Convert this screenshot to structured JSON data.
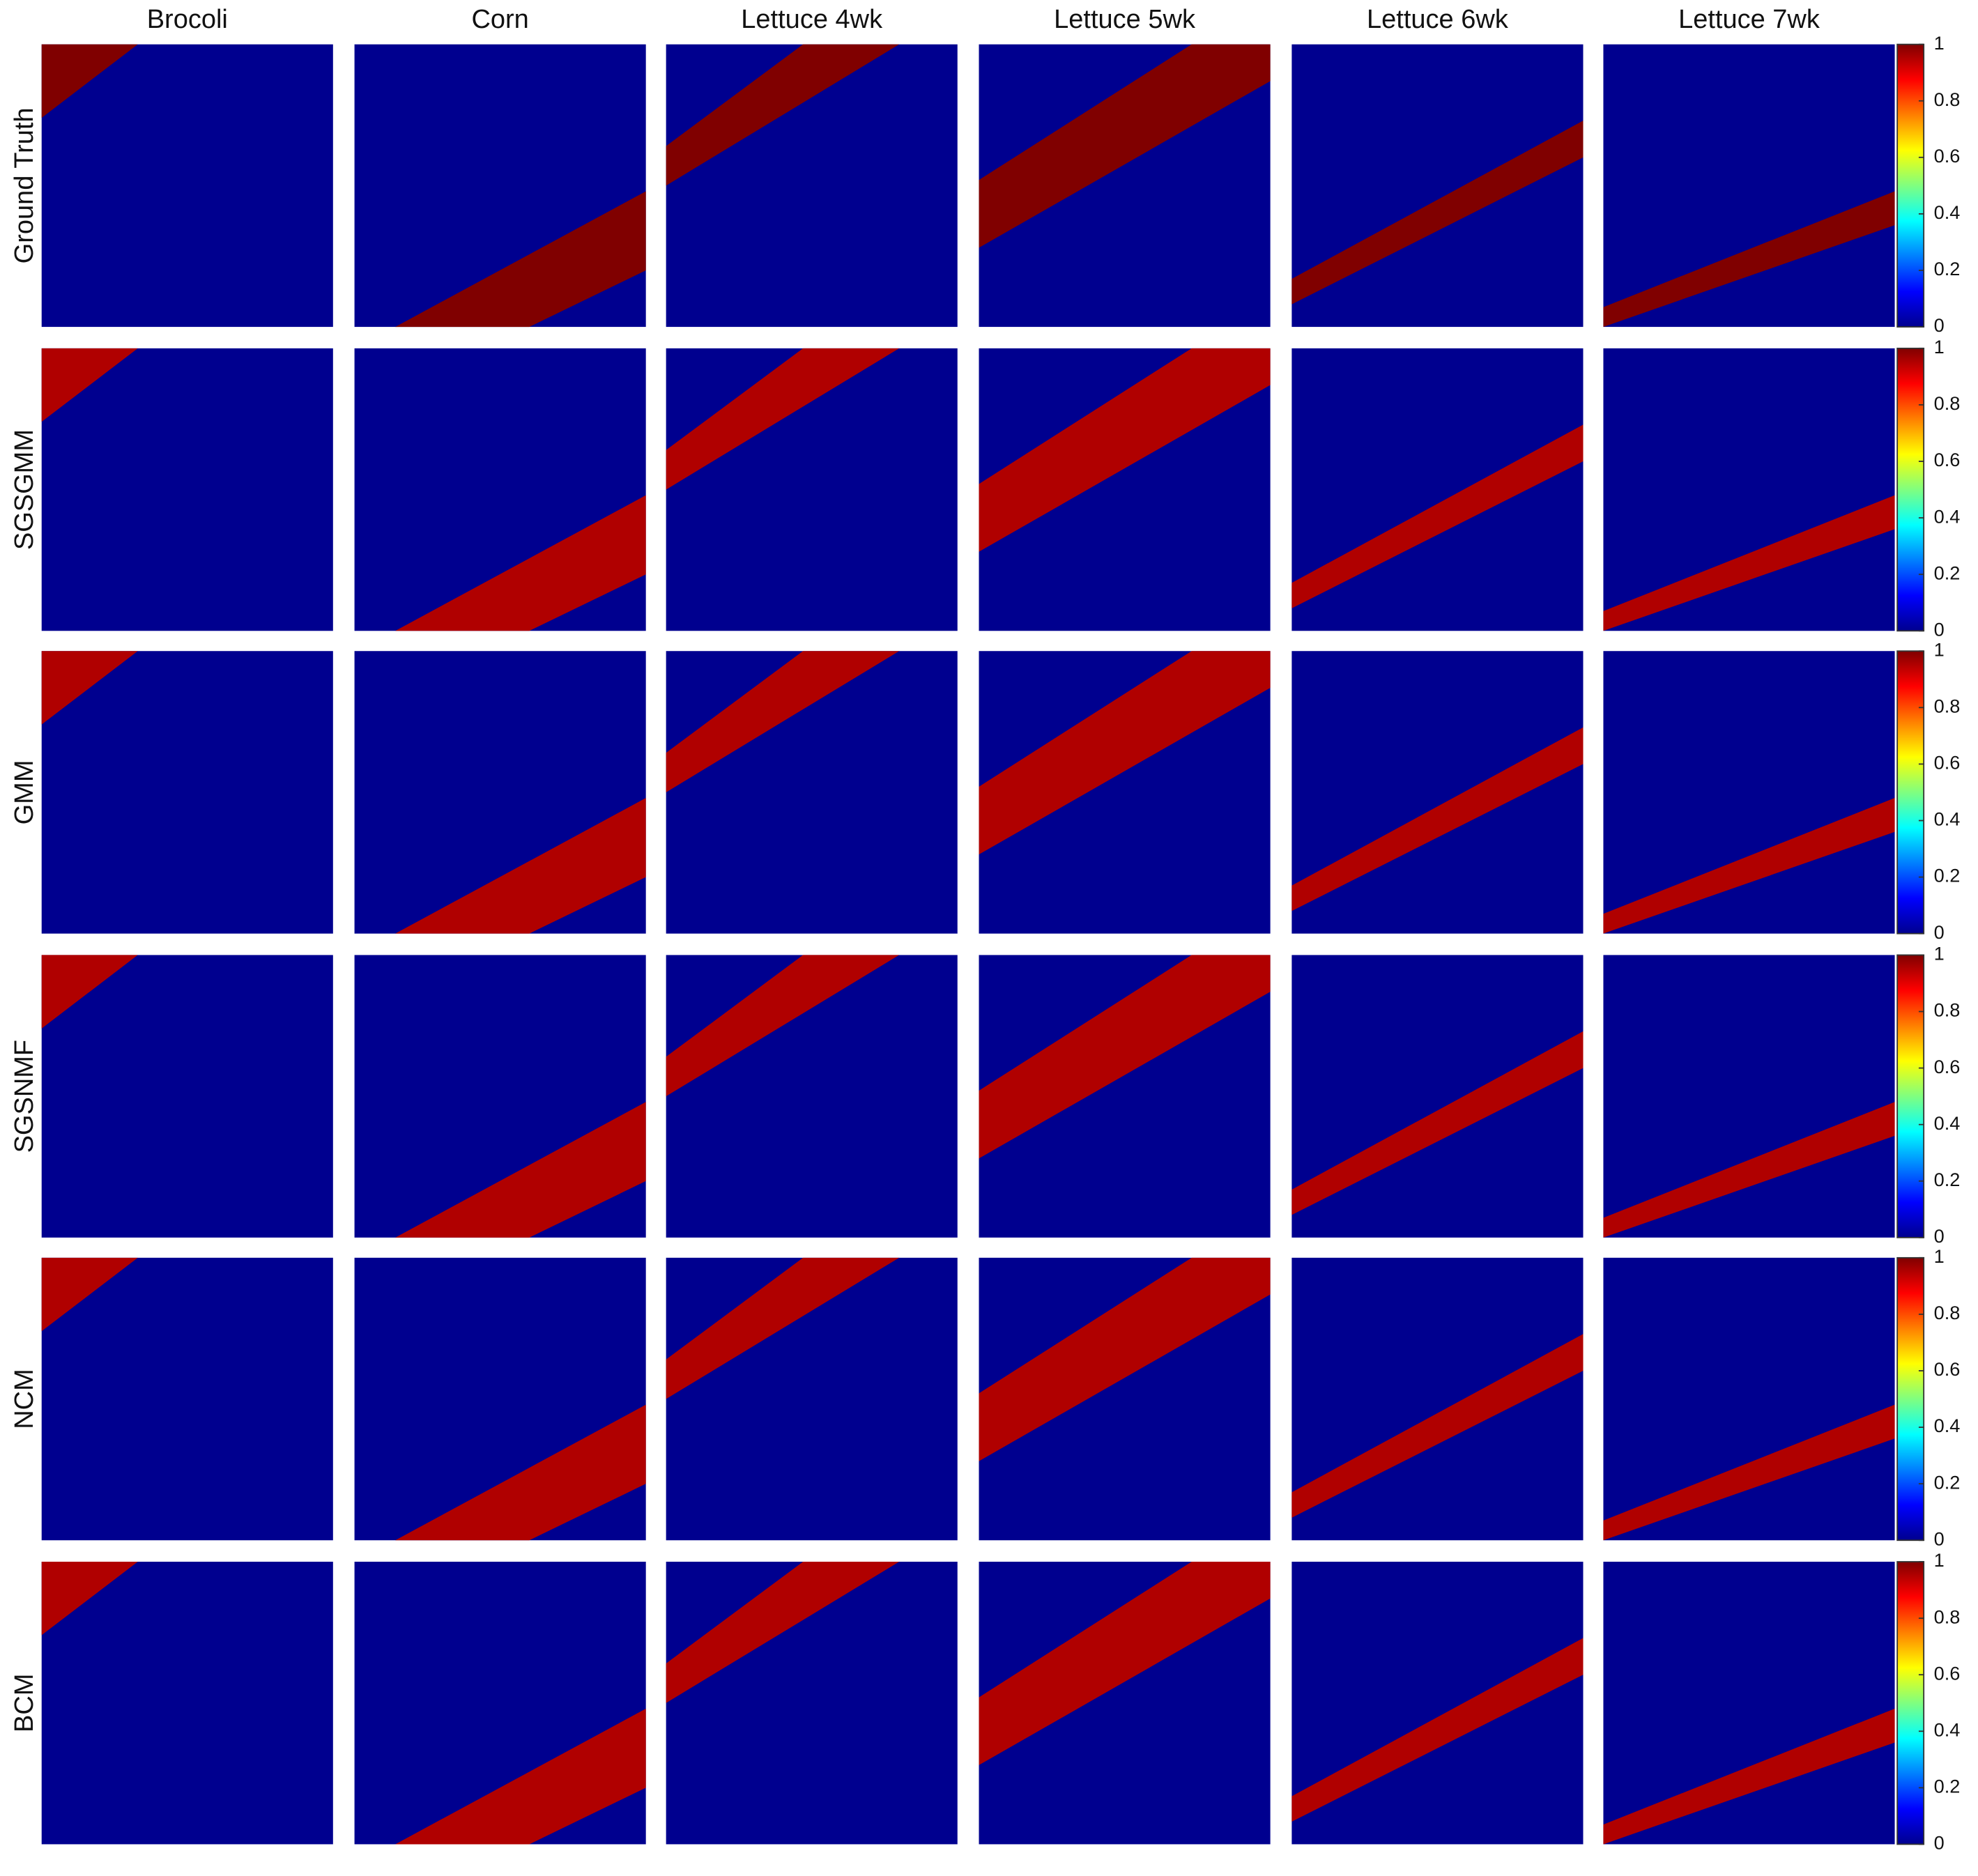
{
  "figure": {
    "columns": [
      "Brocoli",
      "Corn",
      "Lettuce 4wk",
      "Lettuce 5wk",
      "Lettuce 6wk",
      "Lettuce 7wk"
    ],
    "rows": [
      "Ground Truth",
      "SGSGMM",
      "GMM",
      "SGSNMF",
      "NCM",
      "BCM"
    ],
    "colorbar": {
      "ticks": [
        0,
        0.2,
        0.4,
        0.6,
        0.8,
        1
      ]
    }
  }
}
